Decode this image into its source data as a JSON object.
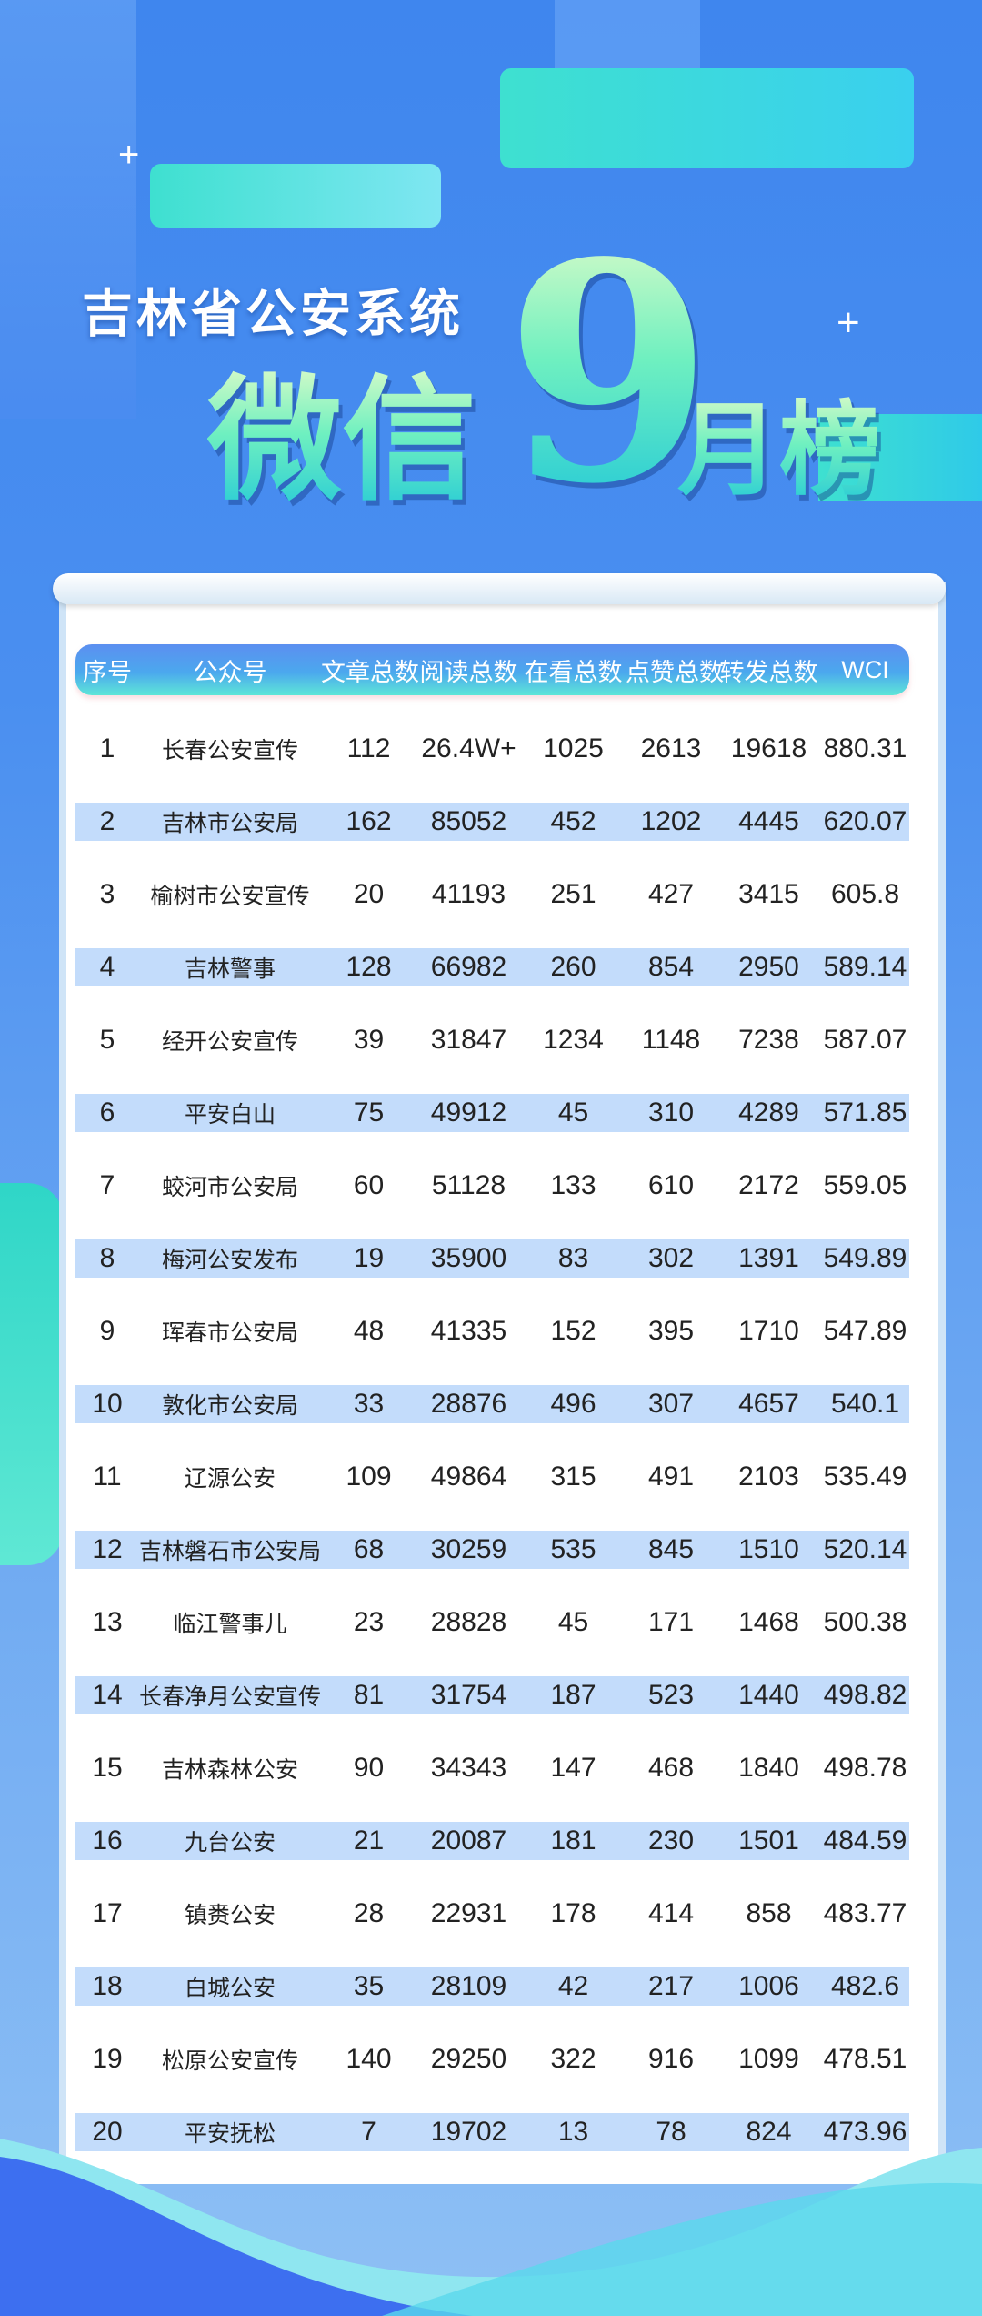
{
  "title": {
    "line1": "吉林省公安系统",
    "part1": "微信",
    "month": "9",
    "part2": "月榜"
  },
  "colors": {
    "background": "#4a8ff0",
    "header_start": "#5c8ff0",
    "header_end": "#5ee6d8",
    "stripe": "#c3dcfb",
    "title_green": "#6ff0c0"
  },
  "table": {
    "headers": [
      "序号",
      "公众号",
      "文章总数",
      "阅读总数",
      "在看总数",
      "点赞总数",
      "转发总数",
      "WCI"
    ],
    "rows": [
      [
        "1",
        "长春公安宣传",
        "112",
        "26.4W+",
        "1025",
        "2613",
        "19618",
        "880.31"
      ],
      [
        "2",
        "吉林市公安局",
        "162",
        "85052",
        "452",
        "1202",
        "4445",
        "620.07"
      ],
      [
        "3",
        "榆树市公安宣传",
        "20",
        "41193",
        "251",
        "427",
        "3415",
        "605.8"
      ],
      [
        "4",
        "吉林警事",
        "128",
        "66982",
        "260",
        "854",
        "2950",
        "589.14"
      ],
      [
        "5",
        "经开公安宣传",
        "39",
        "31847",
        "1234",
        "1148",
        "7238",
        "587.07"
      ],
      [
        "6",
        "平安白山",
        "75",
        "49912",
        "45",
        "310",
        "4289",
        "571.85"
      ],
      [
        "7",
        "蛟河市公安局",
        "60",
        "51128",
        "133",
        "610",
        "2172",
        "559.05"
      ],
      [
        "8",
        "梅河公安发布",
        "19",
        "35900",
        "83",
        "302",
        "1391",
        "549.89"
      ],
      [
        "9",
        "珲春市公安局",
        "48",
        "41335",
        "152",
        "395",
        "1710",
        "547.89"
      ],
      [
        "10",
        "敦化市公安局",
        "33",
        "28876",
        "496",
        "307",
        "4657",
        "540.1"
      ],
      [
        "11",
        "辽源公安",
        "109",
        "49864",
        "315",
        "491",
        "2103",
        "535.49"
      ],
      [
        "12",
        "吉林磐石市公安局",
        "68",
        "30259",
        "535",
        "845",
        "1510",
        "520.14"
      ],
      [
        "13",
        "临江警事儿",
        "23",
        "28828",
        "45",
        "171",
        "1468",
        "500.38"
      ],
      [
        "14",
        "长春净月公安宣传",
        "81",
        "31754",
        "187",
        "523",
        "1440",
        "498.82"
      ],
      [
        "15",
        "吉林森林公安",
        "90",
        "34343",
        "147",
        "468",
        "1840",
        "498.78"
      ],
      [
        "16",
        "九台公安",
        "21",
        "20087",
        "181",
        "230",
        "1501",
        "484.59"
      ],
      [
        "17",
        "镇赉公安",
        "28",
        "22931",
        "178",
        "414",
        "858",
        "483.77"
      ],
      [
        "18",
        "白城公安",
        "35",
        "28109",
        "42",
        "217",
        "1006",
        "482.6"
      ],
      [
        "19",
        "松原公安宣传",
        "140",
        "29250",
        "322",
        "916",
        "1099",
        "478.51"
      ],
      [
        "20",
        "平安抚松",
        "7",
        "19702",
        "13",
        "78",
        "824",
        "473.96"
      ]
    ]
  }
}
